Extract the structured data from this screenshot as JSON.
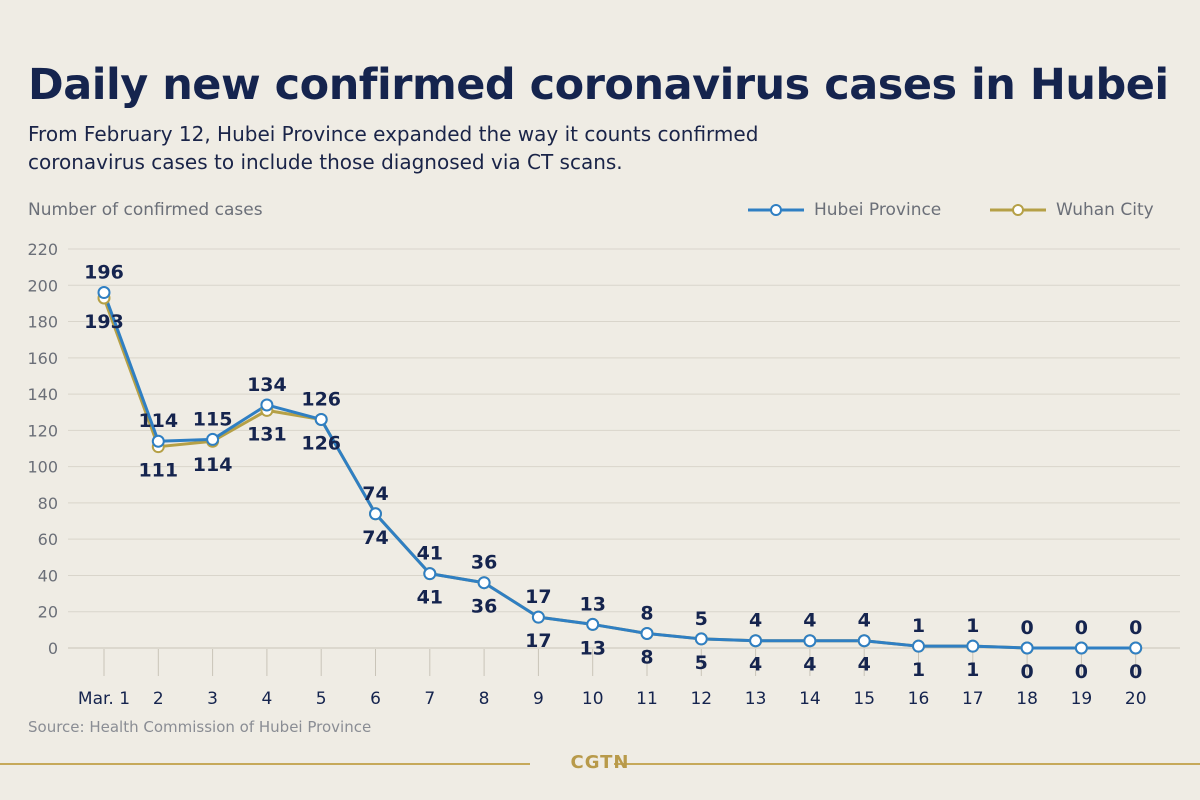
{
  "header": {
    "title": "Daily new confirmed coronavirus cases in Hubei",
    "subtitle_line1": "From February 12, Hubei Province expanded the way it counts confirmed",
    "subtitle_line2": "coronavirus cases to include those diagnosed via CT scans."
  },
  "footer": {
    "source": "Source: Health Commission of Hubei Province",
    "brand": "CGTN"
  },
  "colors": {
    "background": "#efece4",
    "hubei": "#2f7fc3",
    "wuhan": "#b5a046",
    "title": "#15244e",
    "label": "#15244e",
    "grid": "#d9d5cb",
    "axis_text": "#6b6f78",
    "brand": "#c6a95a"
  },
  "chart_data": {
    "type": "line",
    "ylabel": "Number of confirmed cases",
    "xlabel": "",
    "ylim": [
      0,
      220
    ],
    "yticks": [
      0,
      20,
      40,
      60,
      80,
      100,
      120,
      140,
      160,
      180,
      200,
      220
    ],
    "grid": true,
    "legend_position": "top-right",
    "categories": [
      "Mar. 1",
      "2",
      "3",
      "4",
      "5",
      "6",
      "7",
      "8",
      "9",
      "10",
      "11",
      "12",
      "13",
      "14",
      "15",
      "16",
      "17",
      "18",
      "19",
      "20"
    ],
    "series": [
      {
        "name": "Hubei Province",
        "color": "#2f7fc3",
        "values": [
          196,
          114,
          115,
          134,
          126,
          74,
          41,
          36,
          17,
          13,
          8,
          5,
          4,
          4,
          4,
          1,
          1,
          0,
          0,
          0
        ],
        "label_placement": "above"
      },
      {
        "name": "Wuhan City",
        "color": "#b5a046",
        "values": [
          193,
          111,
          114,
          131,
          126,
          74,
          41,
          36,
          17,
          13,
          8,
          5,
          4,
          4,
          4,
          1,
          1,
          0,
          0,
          0
        ],
        "label_placement": "below"
      }
    ]
  }
}
